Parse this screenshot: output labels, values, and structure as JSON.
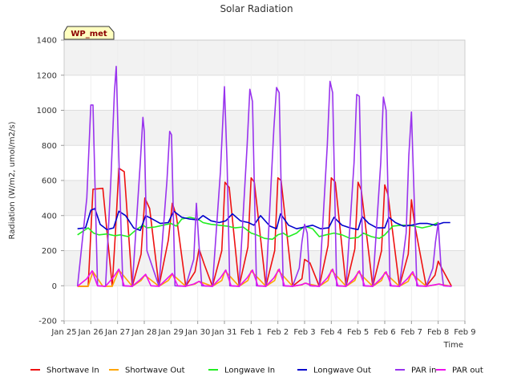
{
  "chart_data": {
    "type": "line",
    "title": "Solar Radiation",
    "xlabel": "Time",
    "ylabel": "Radiation (W/m2, umol/m2/s)",
    "station_label": "WP_met",
    "ylim": [
      -200,
      1400
    ],
    "y_ticks": [
      -200,
      0,
      200,
      400,
      600,
      800,
      1000,
      1200,
      1400
    ],
    "x_range_days": [
      0,
      15
    ],
    "x_tick_labels": [
      "Jan 25",
      "Jan 26",
      "Jan 27",
      "Jan 28",
      "Jan 29",
      "Jan 30",
      "Jan 31",
      "Feb 1",
      "Feb 2",
      "Feb 3",
      "Feb 4",
      "Feb 5",
      "Feb 6",
      "Feb 7",
      "Feb 8",
      "Feb 9"
    ],
    "grid": true,
    "legend_position": "bottom",
    "background_bands": "alternating light gray horizontal bands",
    "colors": {
      "Shortwave In": "#ee1111",
      "Shortwave Out": "#ffa500",
      "Longwave In": "#22ee22",
      "Longwave Out": "#0000cc",
      "PAR in": "#9933ee",
      "PAR out": "#ee11ee"
    },
    "daily_peaks": {
      "days": [
        "Jan 25",
        "Jan 26",
        "Jan 27",
        "Jan 28",
        "Jan 29",
        "Jan 30",
        "Jan 31",
        "Feb 1",
        "Feb 2",
        "Feb 3",
        "Feb 4",
        "Feb 5",
        "Feb 6",
        "Feb 7"
      ],
      "Shortwave In": [
        555,
        670,
        500,
        470,
        210,
        590,
        615,
        615,
        150,
        615,
        590,
        575,
        490,
        140
      ],
      "PAR in": [
        1030,
        1250,
        960,
        880,
        470,
        1135,
        1120,
        1130,
        350,
        1165,
        1090,
        1075,
        990,
        360
      ],
      "PAR out": [
        85,
        95,
        65,
        70,
        25,
        90,
        90,
        95,
        15,
        95,
        85,
        80,
        80,
        10
      ]
    },
    "series": [
      {
        "name": "Shortwave In",
        "x": [
          0.5,
          0.9,
          1.08,
          1.45,
          1.8,
          1.92,
          2.05,
          2.25,
          2.55,
          2.88,
          3.02,
          3.2,
          3.55,
          3.9,
          4.05,
          4.2,
          4.55,
          4.9,
          5.05,
          5.25,
          5.55,
          5.9,
          6.02,
          6.18,
          6.55,
          6.88,
          7.0,
          7.12,
          7.55,
          7.88,
          8.0,
          8.12,
          8.55,
          8.9,
          9.0,
          9.2,
          9.55,
          9.88,
          10.0,
          10.15,
          10.55,
          10.88,
          11.0,
          11.12,
          11.55,
          11.88,
          12.0,
          12.12,
          12.55,
          12.88,
          13.0,
          13.12,
          13.55,
          13.88,
          14.0,
          14.1,
          14.5
        ],
        "y": [
          -3,
          -3,
          550,
          555,
          -3,
          300,
          670,
          650,
          -3,
          180,
          500,
          440,
          -3,
          260,
          470,
          400,
          -3,
          80,
          210,
          120,
          -3,
          200,
          590,
          560,
          -3,
          220,
          615,
          590,
          -3,
          200,
          615,
          600,
          -3,
          40,
          150,
          130,
          -3,
          230,
          615,
          590,
          -3,
          210,
          590,
          545,
          -3,
          200,
          575,
          520,
          -3,
          180,
          490,
          350,
          -3,
          60,
          140,
          110,
          -3
        ]
      },
      {
        "name": "Shortwave Out",
        "x": [
          0.5,
          0.9,
          1.08,
          1.45,
          1.8,
          2.05,
          2.55,
          2.88,
          3.02,
          3.55,
          3.9,
          4.05,
          4.55,
          4.9,
          5.05,
          5.55,
          5.9,
          6.02,
          6.55,
          6.88,
          7.0,
          7.55,
          7.88,
          8.0,
          8.55,
          8.9,
          9.0,
          9.55,
          9.88,
          10.0,
          10.55,
          10.88,
          11.0,
          11.55,
          11.88,
          12.0,
          12.55,
          12.88,
          13.0,
          13.55,
          13.88,
          14.0,
          14.5
        ],
        "y": [
          -3,
          -3,
          80,
          -3,
          -3,
          90,
          -3,
          30,
          60,
          -3,
          30,
          65,
          -3,
          10,
          25,
          -3,
          30,
          85,
          -3,
          30,
          85,
          -3,
          30,
          90,
          -3,
          5,
          15,
          -3,
          30,
          90,
          -3,
          30,
          80,
          -3,
          30,
          75,
          -3,
          25,
          70,
          -3,
          5,
          10,
          -3
        ]
      },
      {
        "name": "Longwave In",
        "x": [
          0.5,
          0.7,
          0.9,
          1.1,
          1.3,
          1.6,
          1.9,
          2.1,
          2.4,
          2.7,
          2.95,
          3.1,
          3.4,
          3.7,
          4.0,
          4.2,
          4.4,
          4.7,
          5.0,
          5.2,
          5.5,
          5.8,
          6.1,
          6.4,
          6.7,
          7.0,
          7.2,
          7.5,
          7.8,
          8.0,
          8.2,
          8.4,
          8.7,
          9.0,
          9.3,
          9.55,
          9.8,
          10.1,
          10.4,
          10.7,
          11.0,
          11.2,
          11.5,
          11.8,
          12.0,
          12.3,
          12.6,
          12.9,
          13.1,
          13.4,
          13.7,
          14.0
        ],
        "y": [
          290,
          310,
          330,
          300,
          290,
          295,
          285,
          290,
          280,
          320,
          345,
          330,
          335,
          345,
          355,
          340,
          380,
          390,
          380,
          360,
          350,
          345,
          340,
          330,
          335,
          300,
          290,
          270,
          265,
          290,
          300,
          280,
          300,
          340,
          325,
          280,
          290,
          300,
          290,
          270,
          275,
          300,
          280,
          270,
          290,
          340,
          345,
          345,
          340,
          330,
          340,
          360
        ]
      },
      {
        "name": "Longwave Out",
        "x": [
          0.5,
          0.8,
          1.0,
          1.15,
          1.35,
          1.6,
          1.85,
          2.05,
          2.3,
          2.6,
          2.85,
          3.05,
          3.3,
          3.6,
          3.9,
          4.1,
          4.4,
          4.7,
          5.0,
          5.2,
          5.5,
          5.8,
          6.05,
          6.3,
          6.6,
          6.9,
          7.1,
          7.35,
          7.7,
          7.95,
          8.1,
          8.4,
          8.7,
          9.0,
          9.3,
          9.6,
          9.9,
          10.1,
          10.4,
          10.7,
          11.0,
          11.15,
          11.4,
          11.7,
          12.0,
          12.15,
          12.4,
          12.7,
          13.0,
          13.3,
          13.6,
          13.9,
          14.2,
          14.45
        ],
        "y": [
          325,
          330,
          430,
          440,
          350,
          320,
          330,
          425,
          400,
          330,
          315,
          400,
          380,
          355,
          360,
          425,
          390,
          380,
          375,
          400,
          370,
          360,
          370,
          410,
          370,
          360,
          345,
          400,
          340,
          325,
          410,
          345,
          325,
          335,
          345,
          325,
          330,
          390,
          345,
          330,
          320,
          395,
          355,
          330,
          330,
          390,
          360,
          340,
          345,
          355,
          355,
          345,
          360,
          360
        ]
      },
      {
        "name": "PAR in",
        "x": [
          0.5,
          0.85,
          1.0,
          1.08,
          1.25,
          1.55,
          1.75,
          1.88,
          1.95,
          2.02,
          2.2,
          2.55,
          2.85,
          2.95,
          3.0,
          3.1,
          3.55,
          3.85,
          3.95,
          4.02,
          4.15,
          4.55,
          4.85,
          4.95,
          5.02,
          5.15,
          5.55,
          5.85,
          6.0,
          6.1,
          6.2,
          6.55,
          6.85,
          6.95,
          7.05,
          7.2,
          7.55,
          7.85,
          7.95,
          8.05,
          8.2,
          8.55,
          8.8,
          8.9,
          9.0,
          9.1,
          9.2,
          9.55,
          9.85,
          9.95,
          10.05,
          10.2,
          10.55,
          10.85,
          10.95,
          11.05,
          11.2,
          11.55,
          11.85,
          11.95,
          12.05,
          12.2,
          12.55,
          12.8,
          12.9,
          13.0,
          13.1,
          13.2,
          13.55,
          13.8,
          13.9,
          14.0,
          14.1,
          14.2,
          14.5
        ],
        "y": [
          -3,
          500,
          1030,
          1030,
          0,
          -3,
          600,
          1100,
          1250,
          870,
          0,
          -3,
          700,
          960,
          880,
          200,
          -3,
          600,
          880,
          860,
          0,
          -3,
          150,
          470,
          300,
          0,
          -3,
          650,
          1135,
          700,
          0,
          -3,
          800,
          1120,
          1050,
          0,
          -3,
          900,
          1130,
          1100,
          0,
          -3,
          100,
          250,
          350,
          300,
          0,
          -3,
          800,
          1165,
          1100,
          0,
          -3,
          700,
          1090,
          1080,
          0,
          -3,
          700,
          1075,
          1000,
          0,
          -3,
          300,
          740,
          990,
          500,
          0,
          -3,
          100,
          250,
          360,
          120,
          0,
          -3
        ]
      },
      {
        "name": "PAR out",
        "x": [
          0.5,
          0.85,
          1.05,
          1.25,
          1.55,
          1.85,
          2.05,
          2.25,
          2.55,
          2.85,
          3.05,
          3.25,
          3.55,
          3.85,
          4.05,
          4.25,
          4.55,
          4.85,
          5.05,
          5.25,
          5.55,
          5.85,
          6.05,
          6.25,
          6.55,
          6.85,
          7.05,
          7.25,
          7.55,
          7.85,
          8.05,
          8.25,
          8.55,
          8.85,
          9.05,
          9.25,
          9.55,
          9.85,
          10.05,
          10.25,
          10.55,
          10.85,
          11.05,
          11.25,
          11.55,
          11.85,
          12.05,
          12.25,
          12.55,
          12.85,
          13.05,
          13.25,
          13.55,
          13.85,
          14.05,
          14.25,
          14.5
        ],
        "y": [
          -3,
          40,
          85,
          0,
          -3,
          50,
          95,
          0,
          -3,
          35,
          65,
          0,
          -3,
          40,
          70,
          0,
          -3,
          10,
          25,
          0,
          -3,
          45,
          90,
          0,
          -3,
          45,
          90,
          0,
          -3,
          45,
          95,
          0,
          -3,
          5,
          15,
          0,
          -3,
          45,
          95,
          0,
          -3,
          40,
          85,
          0,
          -3,
          40,
          80,
          0,
          -3,
          40,
          80,
          0,
          -3,
          5,
          10,
          0,
          -3
        ]
      }
    ]
  }
}
